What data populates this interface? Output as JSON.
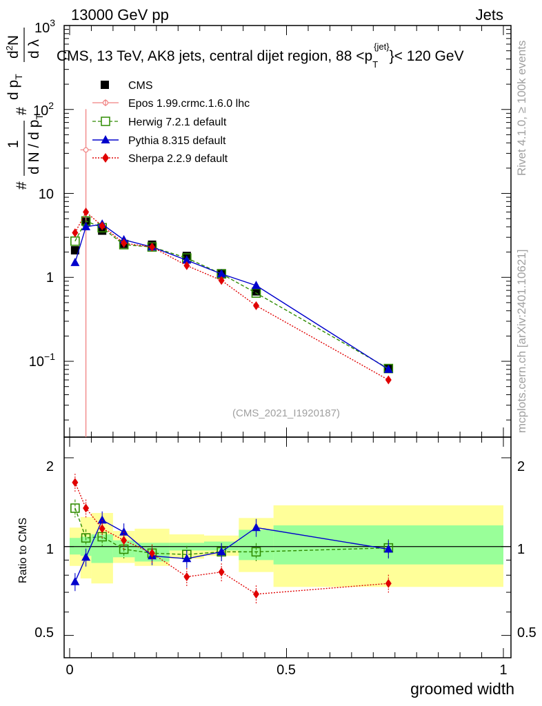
{
  "header": {
    "left": "13000 GeV pp",
    "right": "Jets"
  },
  "plot_title": "CMS, 13 TeV, AK8 jets, central dijet region, 88 <p",
  "plot_title_sup": "{jet}",
  "plot_title_sub": "T",
  "plot_title_end": "}< 120 GeV",
  "analysis_tag": "(CMS_2021_I1920187)",
  "side_text": {
    "rivet": "Rivet 4.1.0, ≥ 100k events",
    "mcplots": "mcplots.cern.ch [arXiv:2401.10621]"
  },
  "ylabel_main": {
    "hash1": "#",
    "one": "1",
    "den": "d N / d p",
    "den_sub": "T",
    "hash2": "#",
    "num2": "d p",
    "num2_sub": "T",
    "frac_num": "d",
    "frac_num_sup": "2",
    "frac_num_end": "N",
    "frac_den": "d λ"
  },
  "ylabel_ratio": "Ratio to CMS",
  "xlabel": "groomed width",
  "main_ticks": [
    {
      "label": "10",
      "sup": "3",
      "value": 1000
    },
    {
      "label": "10",
      "sup": "2",
      "value": 100
    },
    {
      "label": "10",
      "sup": "",
      "value": 10
    },
    {
      "label": "1",
      "sup": "",
      "value": 1
    },
    {
      "label": "10",
      "sup": "−1",
      "value": 0.1
    }
  ],
  "ratio_ticks": [
    {
      "label": "2",
      "value": 2
    },
    {
      "label": "1",
      "value": 1
    },
    {
      "label": "0.5",
      "value": 0.5
    }
  ],
  "x_ticks": [
    {
      "label": "0",
      "value": 0
    },
    {
      "label": "0.5",
      "value": 0.5
    },
    {
      "label": "1",
      "value": 1
    }
  ],
  "chart_data": {
    "type": "scatter",
    "x_range": [
      0,
      1
    ],
    "y_range_main": [
      0.0125,
      1000
    ],
    "y_scale_main": "log",
    "y_range_ratio": [
      0.42,
      2.35
    ],
    "y_scale_ratio": "log",
    "bins": [
      {
        "lo": 0.0,
        "hi": 0.025
      },
      {
        "lo": 0.025,
        "hi": 0.05
      },
      {
        "lo": 0.05,
        "hi": 0.1
      },
      {
        "lo": 0.1,
        "hi": 0.15
      },
      {
        "lo": 0.15,
        "hi": 0.23
      },
      {
        "lo": 0.23,
        "hi": 0.31
      },
      {
        "lo": 0.31,
        "hi": 0.39
      },
      {
        "lo": 0.39,
        "hi": 0.47
      },
      {
        "lo": 0.47,
        "hi": 1.0
      }
    ],
    "data_band_inner": [
      [
        0.94,
        1.07
      ],
      [
        0.93,
        1.08
      ],
      [
        0.88,
        1.1
      ],
      [
        0.92,
        1.05
      ],
      [
        0.89,
        1.03
      ],
      [
        0.97,
        1.03
      ],
      [
        0.97,
        1.04
      ],
      [
        0.9,
        1.14
      ],
      [
        0.87,
        1.18
      ]
    ],
    "data_band_outer": [
      [
        0.86,
        1.16
      ],
      [
        0.78,
        1.26
      ],
      [
        0.75,
        1.3
      ],
      [
        0.88,
        1.13
      ],
      [
        0.86,
        1.15
      ],
      [
        0.91,
        1.1
      ],
      [
        0.93,
        1.09
      ],
      [
        0.82,
        1.25
      ],
      [
        0.73,
        1.38
      ]
    ],
    "series": [
      {
        "name": "CMS",
        "color": "#000000",
        "marker": "square",
        "line": "none",
        "x": [
          0.0125,
          0.0375,
          0.075,
          0.125,
          0.19,
          0.27,
          0.35,
          0.43,
          0.735
        ],
        "y": [
          2.1,
          4.6,
          3.6,
          2.5,
          2.45,
          1.8,
          1.12,
          0.68,
          0.082
        ],
        "ratio": [
          1,
          1,
          1,
          1,
          1,
          1,
          1,
          1,
          1
        ]
      },
      {
        "name": "Epos 1.99.crmc.1.6.0 lhc",
        "color": "#f08080",
        "marker": "open-cross",
        "line": "solid",
        "x": [
          0.0375
        ],
        "y": [
          33
        ],
        "yerr_lo": [
          0.0001
        ],
        "yerr_hi": [
          68
        ],
        "ratio": []
      },
      {
        "name": "Herwig 7.2.1 default",
        "color": "#2e8b00",
        "marker": "open-square",
        "line": "dashed",
        "x": [
          0.0125,
          0.0375,
          0.075,
          0.125,
          0.19,
          0.27,
          0.35,
          0.43,
          0.735
        ],
        "y": [
          2.7,
          4.7,
          3.9,
          2.45,
          2.3,
          1.7,
          1.1,
          0.65,
          0.082
        ],
        "ratio": [
          1.35,
          1.07,
          1.08,
          0.98,
          0.95,
          0.94,
          0.96,
          0.96,
          0.99
        ]
      },
      {
        "name": "Pythia 8.315 default",
        "color": "#0000cc",
        "marker": "triangle",
        "line": "solid",
        "x": [
          0.0125,
          0.0375,
          0.075,
          0.125,
          0.19,
          0.27,
          0.35,
          0.43,
          0.735
        ],
        "y": [
          1.5,
          4.0,
          4.3,
          2.8,
          2.3,
          1.6,
          1.1,
          0.8,
          0.08
        ],
        "ratio": [
          0.76,
          0.92,
          1.23,
          1.12,
          0.93,
          0.91,
          0.96,
          1.16,
          0.98
        ]
      },
      {
        "name": "Sherpa 2.2.9 default",
        "color": "#e00000",
        "marker": "diamond",
        "line": "dotted",
        "x": [
          0.0125,
          0.0375,
          0.075,
          0.125,
          0.19,
          0.27,
          0.35,
          0.43,
          0.735
        ],
        "y": [
          3.4,
          6.0,
          4.1,
          2.55,
          2.3,
          1.38,
          0.92,
          0.46,
          0.06
        ],
        "ratio": [
          1.65,
          1.35,
          1.15,
          1.05,
          0.95,
          0.79,
          0.82,
          0.69,
          0.75
        ]
      }
    ]
  }
}
